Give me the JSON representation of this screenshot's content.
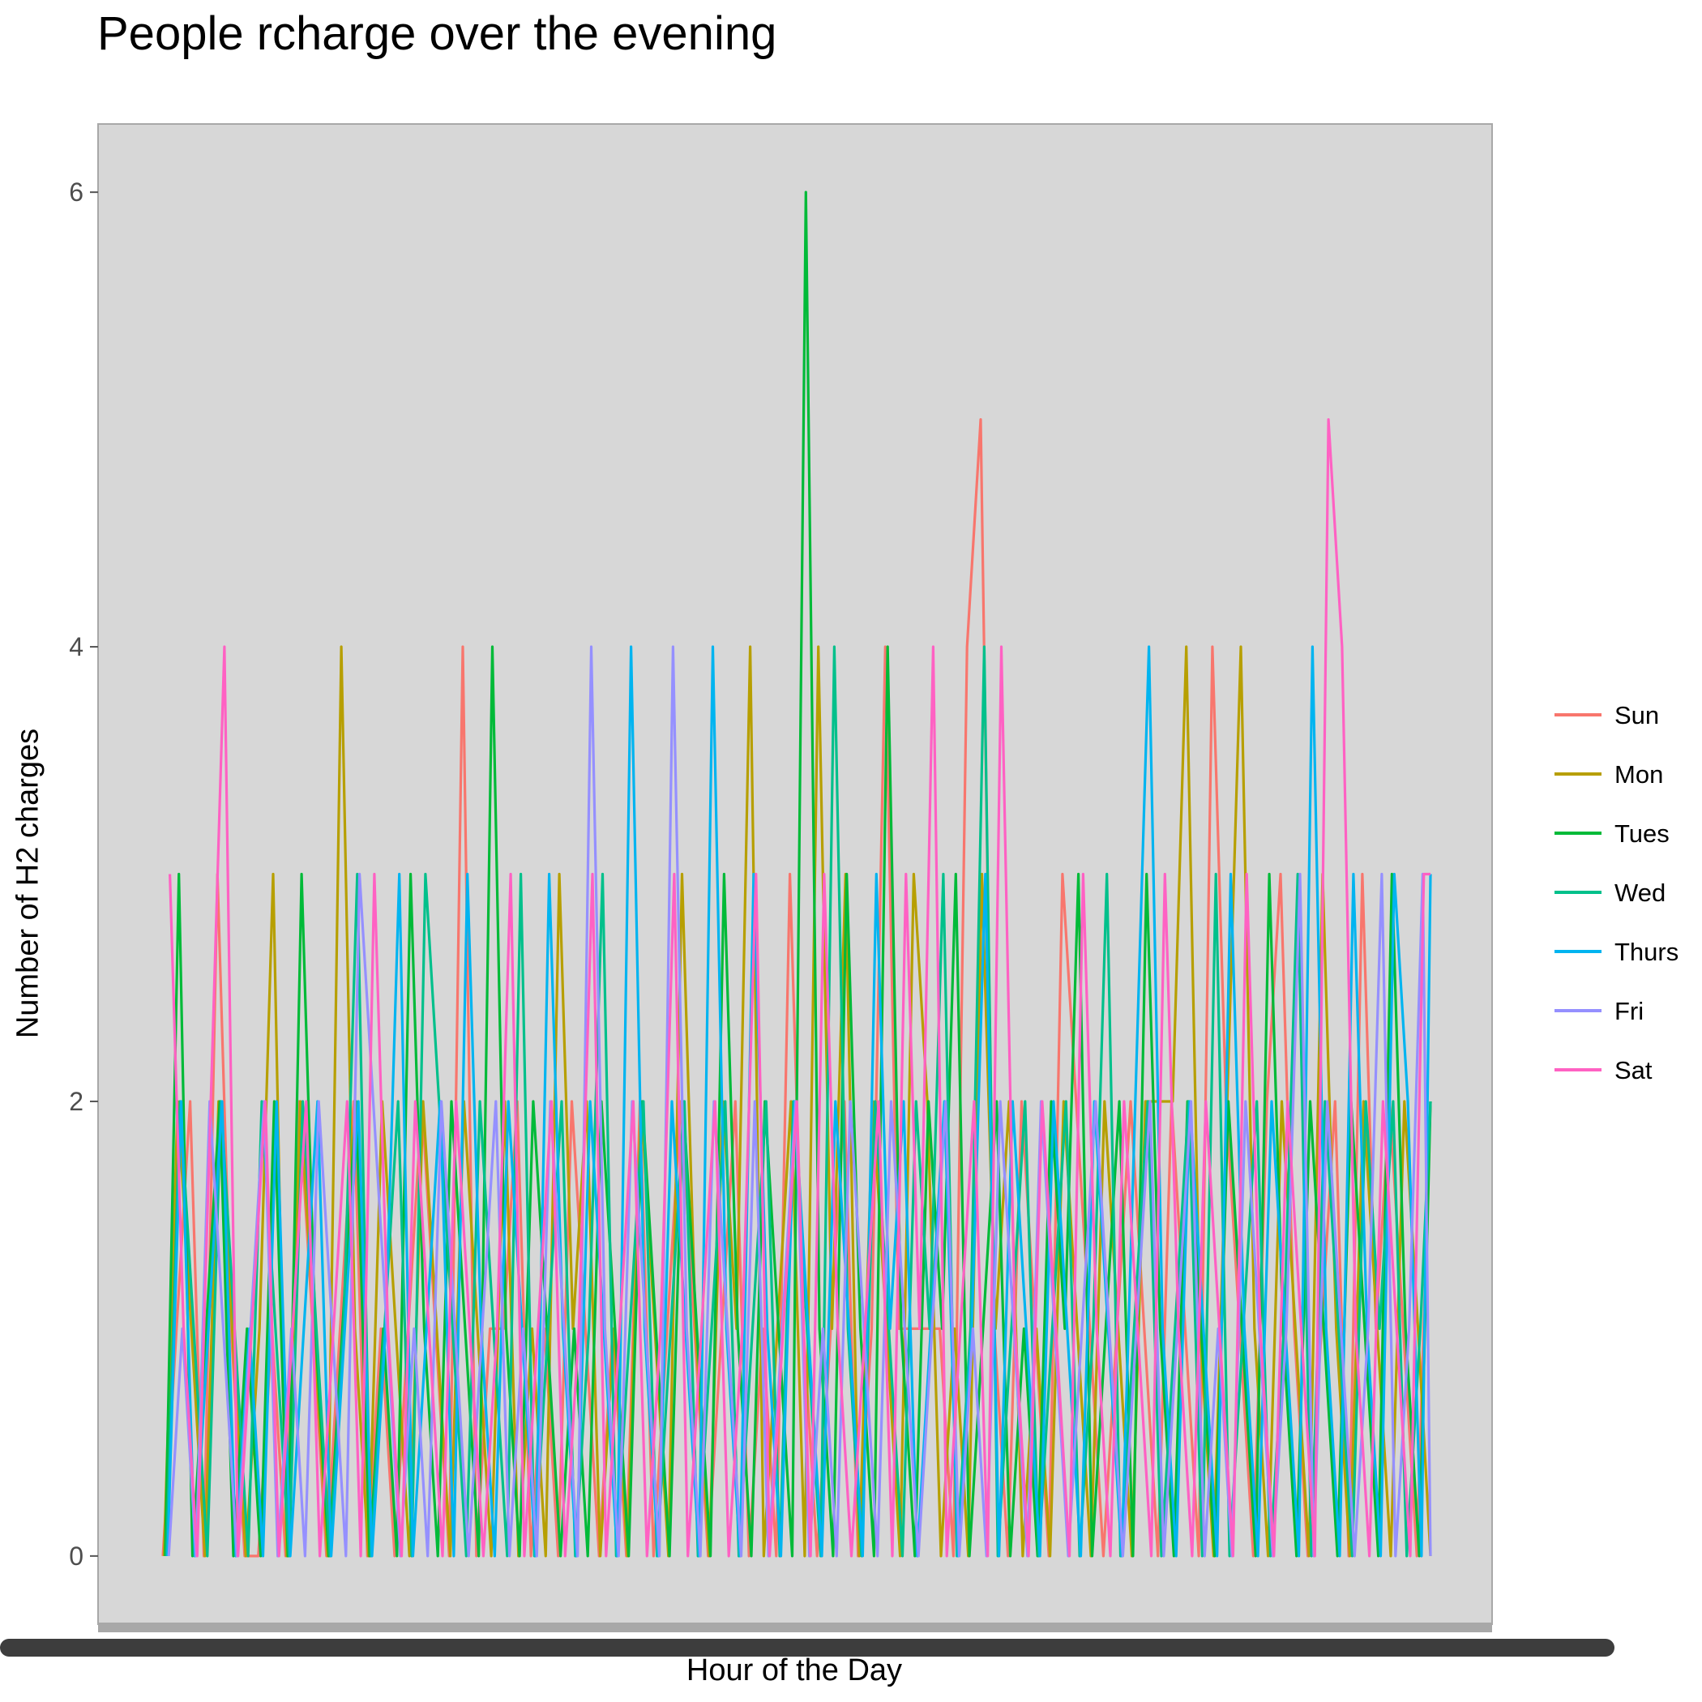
{
  "chart_data": {
    "type": "line",
    "title": "People rcharge over the evening",
    "xlabel": "Hour of the Day",
    "ylabel": "Number of H2 charges",
    "ylim": [
      -0.3,
      6.3
    ],
    "yticks": [
      0,
      2,
      4,
      6
    ],
    "grid": false,
    "legend_position": "right",
    "series": [
      {
        "name": "Sun",
        "color": "#F8766D",
        "values": [
          0,
          1,
          2,
          0,
          3,
          1,
          0,
          0,
          1,
          0,
          2,
          1,
          0,
          1,
          2,
          0,
          1,
          0,
          1,
          2,
          1,
          0,
          4,
          0,
          1,
          1,
          2,
          0,
          1,
          0,
          2,
          1,
          0,
          1,
          0,
          2,
          0,
          1,
          2,
          1,
          0,
          1,
          2,
          0,
          1,
          0,
          3,
          1,
          0,
          1,
          2,
          0,
          1,
          4,
          1,
          1,
          1,
          1,
          0,
          4,
          5,
          1,
          0,
          2,
          1,
          0,
          3,
          2,
          1,
          0,
          1,
          2,
          1,
          0,
          2,
          1,
          0,
          4,
          2,
          1,
          0,
          2,
          3,
          1,
          0,
          1,
          2,
          0,
          3,
          1,
          2,
          1,
          0,
          2
        ]
      },
      {
        "name": "Mon",
        "color": "#B79F00",
        "values": [
          0,
          2,
          1,
          0,
          2,
          1,
          0,
          1,
          3,
          0,
          2,
          1,
          0,
          4,
          1,
          0,
          2,
          1,
          0,
          2,
          1,
          0,
          2,
          1,
          0,
          2,
          0,
          1,
          0,
          3,
          1,
          2,
          0,
          1,
          0,
          2,
          1,
          0,
          3,
          1,
          0,
          2,
          1,
          4,
          0,
          1,
          2,
          0,
          4,
          1,
          3,
          0,
          2,
          1,
          0,
          3,
          2,
          0,
          1,
          0,
          3,
          1,
          2,
          0,
          1,
          0,
          2,
          1,
          0,
          2,
          1,
          0,
          2,
          2,
          2,
          4,
          1,
          0,
          2,
          4,
          1,
          0,
          2,
          1,
          0,
          3,
          1,
          0,
          2,
          1,
          0,
          2,
          1,
          0
        ]
      },
      {
        "name": "Tues",
        "color": "#00BA38",
        "values": [
          0,
          3,
          0,
          1,
          2,
          0,
          1,
          0,
          2,
          0,
          3,
          1,
          0,
          1,
          2,
          0,
          1,
          0,
          3,
          1,
          0,
          2,
          1,
          0,
          4,
          1,
          0,
          2,
          1,
          0,
          1,
          0,
          2,
          1,
          0,
          2,
          1,
          0,
          2,
          1,
          0,
          3,
          1,
          0,
          2,
          1,
          0,
          6,
          1,
          0,
          3,
          1,
          0,
          4,
          1,
          0,
          2,
          1,
          3,
          0,
          1,
          2,
          0,
          1,
          0,
          2,
          1,
          3,
          0,
          1,
          2,
          0,
          3,
          1,
          0,
          2,
          1,
          0,
          2,
          1,
          0,
          3,
          1,
          0,
          2,
          1,
          0,
          2,
          1,
          0,
          3,
          1,
          0,
          2
        ]
      },
      {
        "name": "Wed",
        "color": "#00C08B",
        "values": [
          0,
          2,
          1,
          0,
          2,
          1,
          0,
          2,
          1,
          0,
          2,
          1,
          0,
          1,
          3,
          0,
          1,
          2,
          0,
          3,
          2,
          1,
          0,
          2,
          1,
          0,
          3,
          0,
          1,
          2,
          0,
          1,
          3,
          0,
          1,
          2,
          0,
          1,
          2,
          0,
          1,
          2,
          0,
          1,
          2,
          0,
          2,
          1,
          0,
          4,
          1,
          0,
          2,
          1,
          0,
          2,
          1,
          3,
          0,
          1,
          4,
          0,
          1,
          2,
          0,
          1,
          2,
          0,
          1,
          3,
          0,
          1,
          2,
          0,
          1,
          2,
          0,
          3,
          0,
          1,
          2,
          0,
          1,
          3,
          0,
          2,
          1,
          0,
          2,
          1,
          2,
          0,
          1,
          2
        ]
      },
      {
        "name": "Thurs",
        "color": "#00B4F0",
        "values": [
          0,
          2,
          0,
          1,
          2,
          0,
          1,
          0,
          2,
          0,
          1,
          2,
          0,
          1,
          2,
          0,
          1,
          3,
          0,
          1,
          2,
          0,
          3,
          1,
          0,
          2,
          1,
          0,
          3,
          1,
          0,
          2,
          1,
          0,
          4,
          1,
          0,
          2,
          1,
          0,
          4,
          1,
          0,
          3,
          1,
          0,
          2,
          1,
          0,
          2,
          1,
          0,
          3,
          1,
          2,
          0,
          1,
          2,
          0,
          1,
          3,
          0,
          2,
          1,
          0,
          2,
          1,
          0,
          2,
          1,
          0,
          2,
          4,
          1,
          0,
          2,
          1,
          0,
          3,
          1,
          0,
          2,
          1,
          0,
          4,
          1,
          0,
          3,
          1,
          0,
          3,
          2,
          0,
          3
        ]
      },
      {
        "name": "Fri",
        "color": "#9590FF",
        "values": [
          0,
          1,
          0,
          2,
          1,
          0,
          1,
          2,
          0,
          1,
          0,
          2,
          1,
          0,
          3,
          2,
          1,
          0,
          1,
          0,
          2,
          1,
          0,
          1,
          2,
          0,
          1,
          0,
          2,
          1,
          0,
          4,
          1,
          0,
          2,
          1,
          0,
          4,
          1,
          0,
          2,
          1,
          0,
          2,
          0,
          1,
          2,
          0,
          1,
          0,
          2,
          1,
          0,
          2,
          1,
          0,
          1,
          2,
          0,
          1,
          0,
          2,
          1,
          0,
          2,
          1,
          0,
          1,
          2,
          1,
          0,
          1,
          2,
          0,
          1,
          2,
          0,
          1,
          0,
          2,
          1,
          0,
          1,
          3,
          0,
          2,
          1,
          0,
          1,
          3,
          0,
          1,
          3,
          0
        ]
      },
      {
        "name": "Sat",
        "color": "#FF61C3",
        "values": [
          3,
          1,
          0,
          2,
          4,
          0,
          1,
          2,
          0,
          1,
          2,
          0,
          1,
          2,
          0,
          3,
          1,
          0,
          2,
          1,
          0,
          2,
          1,
          0,
          1,
          3,
          0,
          1,
          2,
          0,
          1,
          3,
          0,
          1,
          2,
          0,
          1,
          3,
          0,
          1,
          2,
          0,
          1,
          3,
          0,
          1,
          2,
          0,
          3,
          1,
          0,
          1,
          2,
          0,
          3,
          1,
          4,
          0,
          1,
          2,
          0,
          4,
          1,
          0,
          2,
          1,
          0,
          3,
          1,
          0,
          2,
          1,
          0,
          3,
          1,
          0,
          2,
          1,
          0,
          3,
          1,
          0,
          2,
          1,
          0,
          5,
          4,
          1,
          0,
          2,
          1,
          0,
          3,
          3
        ]
      }
    ]
  }
}
